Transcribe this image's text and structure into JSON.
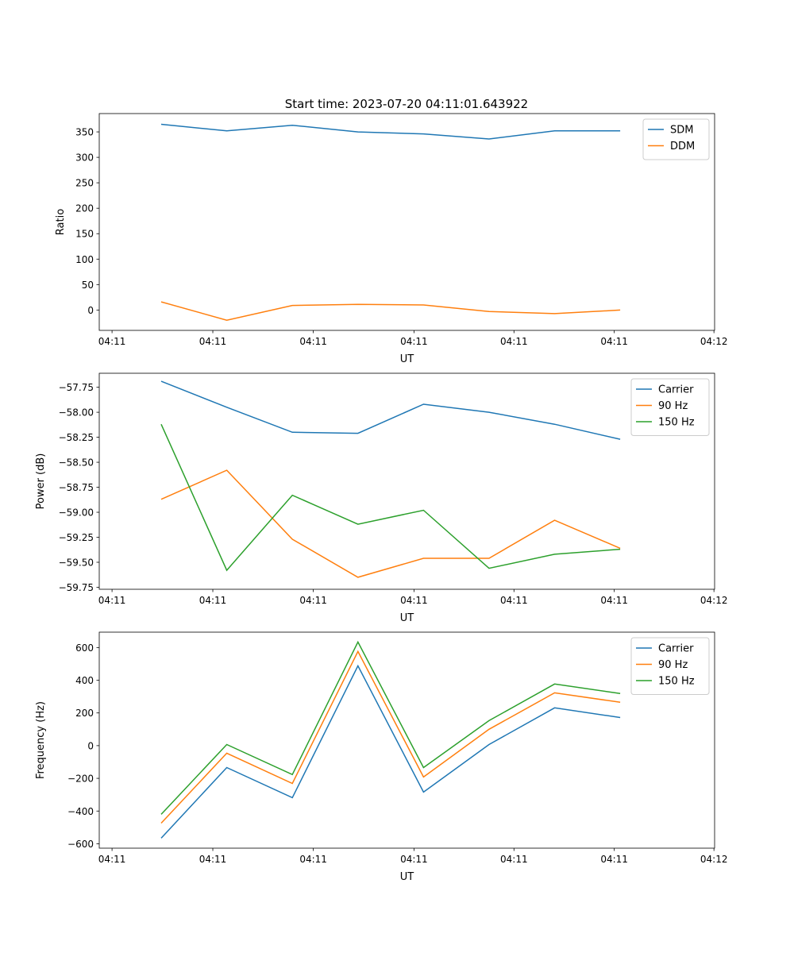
{
  "title": "Start time: 2023-07-20 04:11:01.643922",
  "colors": {
    "blue": "#1f77b4",
    "orange": "#ff7f0e",
    "green": "#2ca02c"
  },
  "chart_data": [
    {
      "type": "line",
      "xlabel": "UT",
      "ylabel": "Ratio",
      "x": [
        0,
        1,
        2,
        3,
        4,
        5,
        6,
        7
      ],
      "xlim": [
        -0.945,
        8.44
      ],
      "xticks": [
        -0.75,
        0.787,
        2.32,
        3.855,
        5.38,
        6.91,
        8.43
      ],
      "xtick_labels": [
        "04:11",
        "04:11",
        "04:11",
        "04:11",
        "04:11",
        "04:11",
        "04:12"
      ],
      "ylim": [
        -40,
        386
      ],
      "yticks": [
        0,
        50,
        100,
        150,
        200,
        250,
        300,
        350
      ],
      "ytick_labels": [
        "0",
        "50",
        "100",
        "150",
        "200",
        "250",
        "300",
        "350"
      ],
      "legend": "top-right",
      "series": [
        {
          "name": "SDM",
          "color": "#1f77b4",
          "values": [
            365,
            352,
            363,
            350,
            346,
            336,
            352,
            352
          ]
        },
        {
          "name": "DDM",
          "color": "#ff7f0e",
          "values": [
            16,
            -20,
            9,
            11,
            10,
            -3,
            -7,
            0
          ]
        }
      ]
    },
    {
      "type": "line",
      "xlabel": "UT",
      "ylabel": "Power (dB)",
      "x": [
        0,
        1,
        2,
        3,
        4,
        5,
        6,
        7
      ],
      "xlim": [
        -0.945,
        8.44
      ],
      "xticks": [
        -0.75,
        0.787,
        2.32,
        3.855,
        5.38,
        6.91,
        8.43
      ],
      "xtick_labels": [
        "04:11",
        "04:11",
        "04:11",
        "04:11",
        "04:11",
        "04:11",
        "04:12"
      ],
      "ylim": [
        -59.77,
        -57.61
      ],
      "yticks": [
        -57.75,
        -58.0,
        -58.25,
        -58.5,
        -58.75,
        -59.0,
        -59.25,
        -59.5,
        -59.75
      ],
      "ytick_labels": [
        "−57.75",
        "−58.00",
        "−58.25",
        "−58.50",
        "−58.75",
        "−59.00",
        "−59.25",
        "−59.50",
        "−59.75"
      ],
      "legend": "top-right",
      "series": [
        {
          "name": "Carrier",
          "color": "#1f77b4",
          "values": [
            -57.69,
            -57.95,
            -58.2,
            -58.21,
            -57.92,
            -58.0,
            -58.12,
            -58.27
          ]
        },
        {
          "name": "90 Hz",
          "color": "#ff7f0e",
          "values": [
            -58.87,
            -58.58,
            -59.27,
            -59.65,
            -59.46,
            -59.46,
            -59.08,
            -59.36
          ]
        },
        {
          "name": "150 Hz",
          "color": "#2ca02c",
          "values": [
            -58.12,
            -59.58,
            -58.83,
            -59.12,
            -58.98,
            -59.56,
            -59.42,
            -59.37
          ]
        }
      ]
    },
    {
      "type": "line",
      "xlabel": "UT",
      "ylabel": "Frequency (Hz)",
      "x": [
        0,
        1,
        2,
        3,
        4,
        5,
        6,
        7
      ],
      "xlim": [
        -0.945,
        8.44
      ],
      "xticks": [
        -0.75,
        0.787,
        2.32,
        3.855,
        5.38,
        6.91,
        8.43
      ],
      "xtick_labels": [
        "04:11",
        "04:11",
        "04:11",
        "04:11",
        "04:11",
        "04:11",
        "04:12"
      ],
      "ylim": [
        -627,
        694
      ],
      "yticks": [
        -600,
        -400,
        -200,
        0,
        200,
        400,
        600
      ],
      "ytick_labels": [
        "−600",
        "−400",
        "−200",
        "0",
        "200",
        "400",
        "600"
      ],
      "legend": "top-right",
      "series": [
        {
          "name": "Carrier",
          "color": "#1f77b4",
          "values": [
            -566,
            -134,
            -318,
            488,
            -284,
            7,
            231,
            172
          ]
        },
        {
          "name": "90 Hz",
          "color": "#ff7f0e",
          "values": [
            -474,
            -46,
            -231,
            576,
            -192,
            100,
            323,
            265
          ]
        },
        {
          "name": "150 Hz",
          "color": "#2ca02c",
          "values": [
            -420,
            7,
            -177,
            634,
            -134,
            153,
            377,
            319
          ]
        }
      ]
    }
  ]
}
